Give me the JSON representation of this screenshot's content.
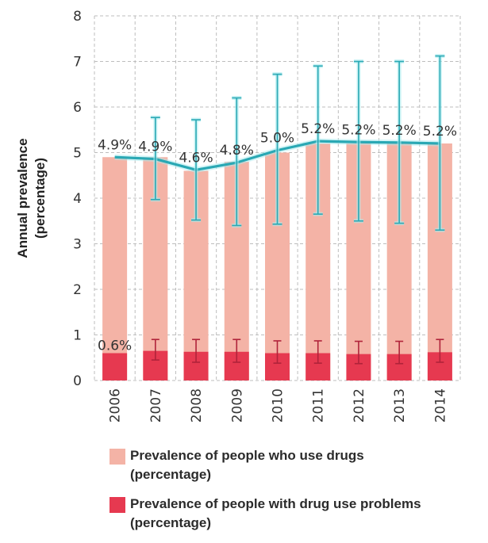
{
  "chart_data": {
    "type": "bar",
    "ylabel": "Annual prevalence\n(percentage)",
    "xlabel": "",
    "ylim": [
      0,
      8
    ],
    "yticks": [
      0,
      1,
      2,
      3,
      4,
      5,
      6,
      7,
      8
    ],
    "grid": true,
    "legend_position": "bottom",
    "categories": [
      "2006",
      "2007",
      "2008",
      "2009",
      "2010",
      "2011",
      "2012",
      "2013",
      "2014"
    ],
    "series": [
      {
        "name": "Prevalence of people who use drugs\n(percentage)",
        "color": "#f4b3a6",
        "values": [
          4.9,
          4.9,
          4.6,
          4.8,
          5.0,
          5.2,
          5.2,
          5.2,
          5.2
        ],
        "line_color": "#2aa8b4",
        "line_values": [
          4.9,
          4.86,
          4.62,
          4.78,
          5.05,
          5.25,
          5.23,
          5.22,
          5.2
        ],
        "error_low": [
          null,
          3.97,
          3.52,
          3.4,
          3.43,
          3.65,
          3.5,
          3.45,
          3.3
        ],
        "error_high": [
          null,
          5.77,
          5.72,
          6.2,
          6.72,
          6.9,
          7.0,
          7.0,
          7.12
        ],
        "error_color": "#2aa8b4",
        "labels": [
          "4.9%",
          "4.9%",
          "4.6%",
          "4.8%",
          "5.0%",
          "5.2%",
          "5.2%",
          "5.2%",
          "5.2%"
        ]
      },
      {
        "name": "Prevalence of people with drug use problems\n(percentage)",
        "color": "#e63950",
        "values": [
          0.6,
          0.65,
          0.63,
          0.63,
          0.6,
          0.6,
          0.58,
          0.58,
          0.62
        ],
        "error_low": [
          null,
          0.45,
          0.4,
          0.4,
          0.38,
          0.38,
          0.37,
          0.37,
          0.4
        ],
        "error_high": [
          null,
          0.9,
          0.9,
          0.9,
          0.87,
          0.87,
          0.86,
          0.86,
          0.9
        ],
        "error_color": "#b0233a",
        "labels": [
          "0.6%",
          "",
          "",
          "",
          "",
          "",
          "",
          "",
          ""
        ]
      }
    ]
  }
}
